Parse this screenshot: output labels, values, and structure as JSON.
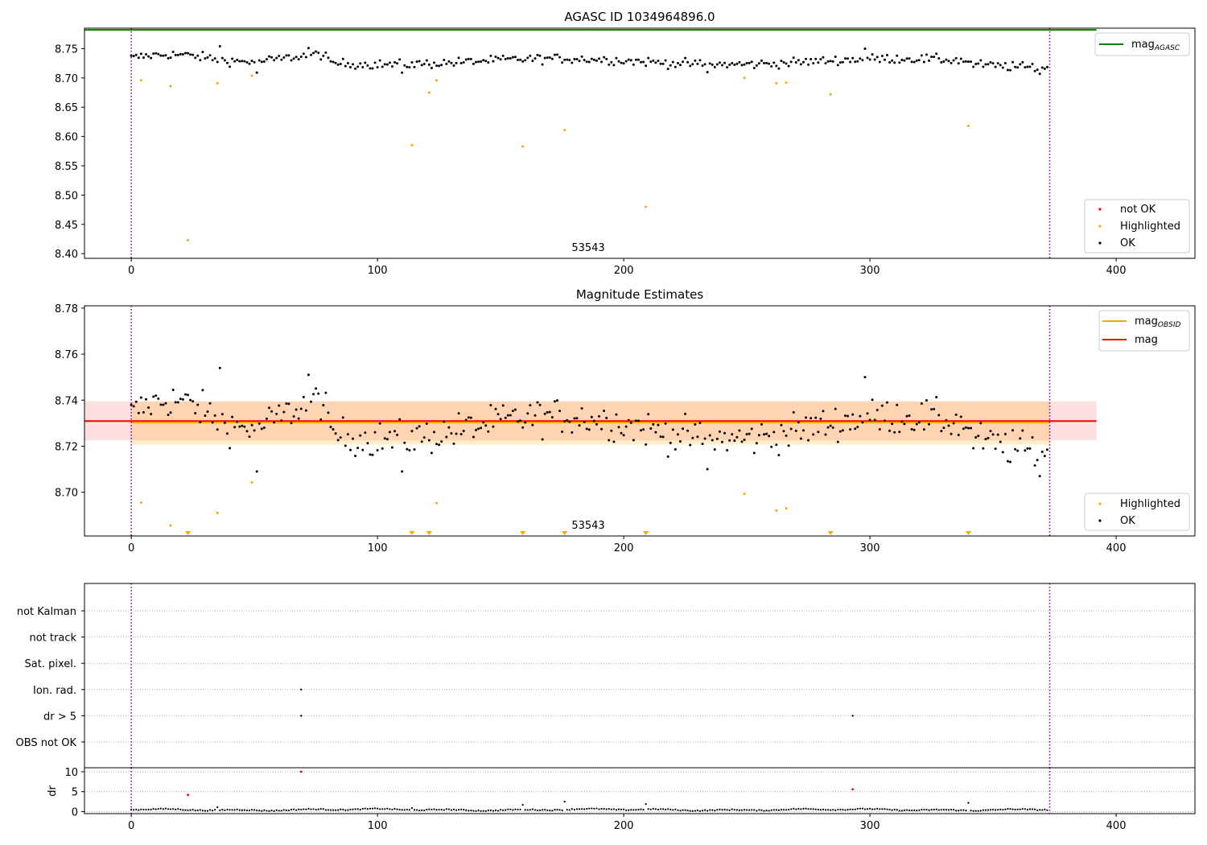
{
  "chart_data": [
    {
      "type": "scatter",
      "title": "AGASC ID 1034964896.0",
      "xlabel": "",
      "ylabel": "",
      "xlim": [
        -19,
        432
      ],
      "ylim": [
        8.392,
        8.785
      ],
      "x_ticks": [
        "0",
        "100",
        "200",
        "300",
        "400"
      ],
      "y_ticks": [
        "8.40",
        "8.45",
        "8.50",
        "8.55",
        "8.60",
        "8.65",
        "8.70",
        "8.75"
      ],
      "grid": false,
      "obsid_label": "53543",
      "obsid_label_x": 186,
      "obs_boundaries": [
        0,
        373
      ],
      "reference_lines": [
        {
          "label_main": "mag",
          "label_sub": "AGASC",
          "value": 8.782,
          "x_range": [
            -19,
            392
          ],
          "color": "#008000"
        }
      ],
      "legend_top": {
        "position": "top-right"
      },
      "legend_bottom": {
        "position": "bottom-right",
        "entries": [
          "not OK",
          "Highlighted",
          "OK"
        ]
      },
      "highlighted": [
        [
          4,
          8.696
        ],
        [
          16,
          8.686
        ],
        [
          23,
          8.423
        ],
        [
          35,
          8.691
        ],
        [
          49,
          8.704
        ],
        [
          114,
          8.585
        ],
        [
          121,
          8.675
        ],
        [
          124,
          8.696
        ],
        [
          159,
          8.583
        ],
        [
          176,
          8.611
        ],
        [
          209,
          8.48
        ],
        [
          249,
          8.7
        ],
        [
          262,
          8.691
        ],
        [
          266,
          8.692
        ],
        [
          284,
          8.672
        ],
        [
          340,
          8.618
        ]
      ],
      "ok_series_description": "black points for every frame index 0-372 scattered between about 8.707 and 8.754"
    },
    {
      "type": "scatter",
      "title": "Magnitude Estimates",
      "xlabel": "",
      "ylabel": "",
      "xlim": [
        -19,
        432
      ],
      "ylim": [
        8.681,
        8.781
      ],
      "x_ticks": [
        "0",
        "100",
        "200",
        "300",
        "400"
      ],
      "y_ticks": [
        "8.70",
        "8.72",
        "8.74",
        "8.76",
        "8.78"
      ],
      "grid": false,
      "obsid_label": "53543",
      "obsid_label_x": 186,
      "obs_boundaries": [
        0,
        373
      ],
      "lines": [
        {
          "label_main": "mag",
          "label_sub": "OBSID",
          "value": 8.7303,
          "band": [
            8.7207,
            8.7394
          ],
          "x_range": [
            0,
            373
          ],
          "color": "#ffa500"
        },
        {
          "label_main": "mag",
          "label_sub": "",
          "value": 8.7309,
          "band": [
            8.7225,
            8.7395
          ],
          "x_range": [
            -19,
            392
          ],
          "color": "#ff0000"
        }
      ],
      "legend_top": {
        "position": "top-right"
      },
      "legend_bottom": {
        "position": "bottom-right",
        "entries": [
          "Highlighted",
          "OK"
        ]
      },
      "highlighted": [
        [
          4,
          8.6955
        ],
        [
          16,
          8.6855
        ],
        [
          35,
          8.691
        ],
        [
          49,
          8.7043
        ],
        [
          124,
          8.6953
        ],
        [
          249,
          8.6993
        ],
        [
          262,
          8.692
        ],
        [
          266,
          8.693
        ]
      ],
      "below_range_markers": [
        23,
        114,
        121,
        159,
        176,
        209,
        284,
        340
      ]
    },
    {
      "type": "scatter",
      "title": "",
      "xlabel": "",
      "ylabel": "",
      "xlim": [
        -19,
        432
      ],
      "x_ticks": [
        "0",
        "100",
        "200",
        "300",
        "400"
      ],
      "grid": true,
      "categories": [
        "not Kalman",
        "not track",
        "Sat. pixel.",
        "Ion. rad.",
        "dr > 5",
        "OBS not OK"
      ],
      "flags": [
        {
          "category": "Ion. rad.",
          "x": 69
        },
        {
          "category": "dr > 5",
          "x": 69
        },
        {
          "category": "dr > 5",
          "x": 293
        }
      ],
      "obs_boundaries": [
        0,
        373
      ]
    },
    {
      "type": "scatter",
      "title": "",
      "xlabel": "",
      "ylabel": "dr",
      "xlim": [
        -19,
        432
      ],
      "ylim": [
        -0.5,
        11
      ],
      "y_ticks": [
        "0",
        "5",
        "10"
      ],
      "x_ticks": [
        "0",
        "100",
        "200",
        "300",
        "400"
      ],
      "grid": true,
      "not_ok": [
        [
          23,
          4.2
        ],
        [
          69,
          10.0
        ],
        [
          293,
          5.6
        ]
      ],
      "spikes": [
        [
          114,
          0.9
        ],
        [
          159,
          1.7
        ],
        [
          176,
          2.5
        ],
        [
          209,
          1.9
        ],
        [
          340,
          2.2
        ],
        [
          35,
          1.1
        ]
      ],
      "obs_boundaries": [
        0,
        373
      ]
    }
  ],
  "legend": {
    "mag_label": "mag",
    "agasc_sub": "AGASC",
    "obsid_sub": "OBSID",
    "not_ok": "not OK",
    "highlighted": "Highlighted",
    "ok": "OK"
  },
  "colors": {
    "ok": "#000000",
    "highlighted": "#ffa500",
    "not_ok": "#ff0000",
    "agasc_line": "#008000",
    "obsid_line": "#ffa500",
    "mag_line": "#ff0000",
    "boundary": "#800080"
  }
}
